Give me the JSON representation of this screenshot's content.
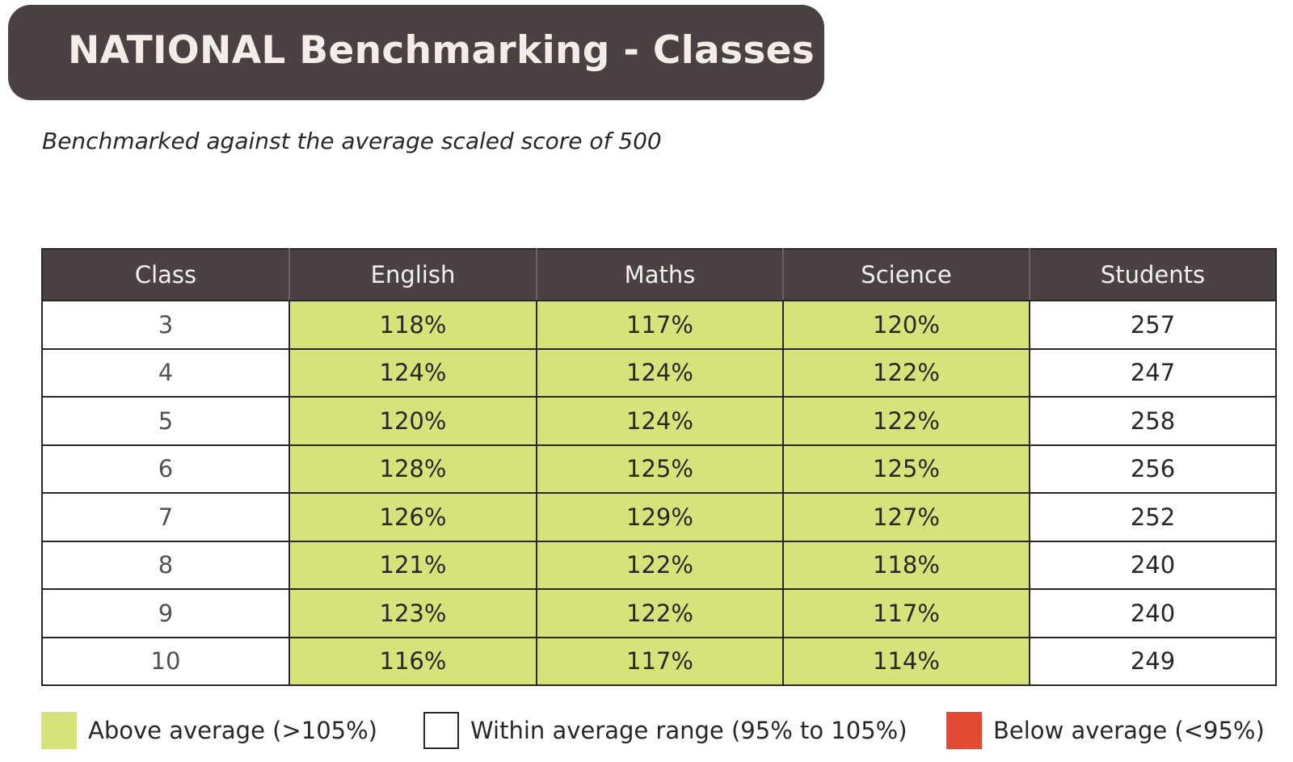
{
  "title": "NATIONAL Benchmarking - Classes",
  "subtitle": "Benchmarked against the average scaled score of 500",
  "colors": {
    "header_bg": "#4a4242",
    "above": "#d6e37b",
    "within": "#ffffff",
    "below": "#e24a33"
  },
  "table": {
    "headers": [
      "Class",
      "English",
      "Maths",
      "Science",
      "Students"
    ],
    "rows": [
      {
        "class": "3",
        "english": "118%",
        "maths": "117%",
        "science": "120%",
        "students": "257"
      },
      {
        "class": "4",
        "english": "124%",
        "maths": "124%",
        "science": "122%",
        "students": "247"
      },
      {
        "class": "5",
        "english": "120%",
        "maths": "124%",
        "science": "122%",
        "students": "258"
      },
      {
        "class": "6",
        "english": "128%",
        "maths": "125%",
        "science": "125%",
        "students": "256"
      },
      {
        "class": "7",
        "english": "126%",
        "maths": "129%",
        "science": "127%",
        "students": "252"
      },
      {
        "class": "8",
        "english": "121%",
        "maths": "122%",
        "science": "118%",
        "students": "240"
      },
      {
        "class": "9",
        "english": "123%",
        "maths": "122%",
        "science": "117%",
        "students": "240"
      },
      {
        "class": "10",
        "english": "116%",
        "maths": "117%",
        "science": "114%",
        "students": "249"
      }
    ],
    "score_status": "above"
  },
  "legend": {
    "above_label": "Above average (>105%)",
    "within_label": "Within average range (95% to 105%)",
    "below_label": "Below average (<95%)"
  }
}
